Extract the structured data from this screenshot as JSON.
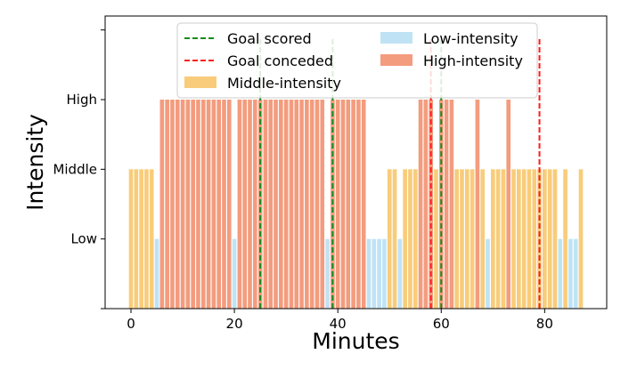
{
  "chart_data": {
    "type": "bar",
    "xlabel": "Minutes",
    "ylabel": "Intensity",
    "xlim": [
      -5,
      92
    ],
    "ylim": [
      0,
      4.2
    ],
    "x_ticks": [
      0,
      20,
      40,
      60,
      80
    ],
    "y_ticks": [
      {
        "value": 1,
        "label": "Low"
      },
      {
        "value": 2,
        "label": "Middle"
      },
      {
        "value": 3,
        "label": "High"
      }
    ],
    "level_values": {
      "low": 1,
      "middle": 2,
      "high": 3
    },
    "series": [
      {
        "name": "Low-intensity",
        "key": "low",
        "color": "#bfe3f5"
      },
      {
        "name": "Middle-intensity",
        "key": "middle",
        "color": "#f8cc7a"
      },
      {
        "name": "High-intensity",
        "key": "high",
        "color": "#f39c7e"
      }
    ],
    "minutes": [
      0,
      1,
      2,
      3,
      4,
      5,
      6,
      7,
      8,
      9,
      10,
      11,
      12,
      13,
      14,
      15,
      16,
      17,
      18,
      19,
      20,
      21,
      22,
      23,
      24,
      25,
      26,
      27,
      28,
      29,
      30,
      31,
      32,
      33,
      34,
      35,
      36,
      37,
      38,
      39,
      40,
      41,
      42,
      43,
      44,
      45,
      46,
      47,
      48,
      49,
      50,
      51,
      52,
      53,
      54,
      55,
      56,
      57,
      58,
      59,
      60,
      61,
      62,
      63,
      64,
      65,
      66,
      67,
      68,
      69,
      70,
      71,
      72,
      73,
      74,
      75,
      76,
      77,
      78,
      79,
      80,
      81,
      82,
      83,
      84,
      85,
      86,
      87
    ],
    "intensity": [
      "middle",
      "middle",
      "middle",
      "middle",
      "middle",
      "low",
      "high",
      "high",
      "high",
      "high",
      "high",
      "high",
      "high",
      "high",
      "high",
      "high",
      "high",
      "high",
      "high",
      "high",
      "low",
      "high",
      "high",
      "high",
      "high",
      "high",
      "high",
      "high",
      "high",
      "high",
      "high",
      "high",
      "high",
      "high",
      "high",
      "high",
      "high",
      "high",
      "low",
      "high",
      "high",
      "high",
      "high",
      "high",
      "high",
      "high",
      "low",
      "low",
      "low",
      "low",
      "middle",
      "middle",
      "low",
      "middle",
      "middle",
      "middle",
      "high",
      "high",
      "high",
      "middle",
      "high",
      "high",
      "high",
      "middle",
      "middle",
      "middle",
      "middle",
      "high",
      "middle",
      "low",
      "middle",
      "middle",
      "middle",
      "high",
      "middle",
      "middle",
      "middle",
      "middle",
      "middle",
      "middle",
      "middle",
      "middle",
      "middle",
      "low",
      "middle",
      "low",
      "low",
      "middle"
    ],
    "events": [
      {
        "type": "goal-scored",
        "minute": 25,
        "color": "#1a8a1a",
        "opacity": 1
      },
      {
        "type": "goal-scored",
        "minute": 39,
        "color": "#1a8a1a",
        "opacity": 1
      },
      {
        "type": "goal-scored",
        "minute": 60,
        "color": "#1a8a1a",
        "opacity": 1
      },
      {
        "type": "goal-conceded",
        "minute": 58,
        "color": "#ff1a1a",
        "opacity": 1
      },
      {
        "type": "goal-conceded",
        "minute": 79,
        "color": "#ff1a1a",
        "opacity": 1
      }
    ],
    "legend": [
      {
        "label": "Goal scored",
        "kind": "dash",
        "color": "#1a8a1a"
      },
      {
        "label": "Goal conceded",
        "kind": "dash",
        "color": "#ff1a1a"
      },
      {
        "label": "Middle-intensity",
        "kind": "patch",
        "color": "#f8cc7a"
      },
      {
        "label": "Low-intensity",
        "kind": "patch",
        "color": "#bfe3f5"
      },
      {
        "label": "High-intensity",
        "kind": "patch",
        "color": "#f39c7e"
      }
    ],
    "legend_position": "upper-center"
  }
}
